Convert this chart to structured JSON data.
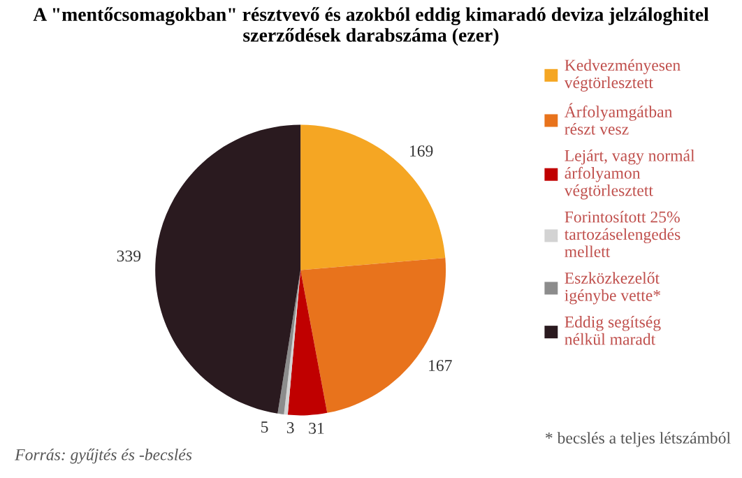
{
  "chart_data": {
    "type": "pie",
    "title": "A \"mentőcsomagokban\" résztvevő és azokból eddig kimaradó deviza jelzáloghitel szerződések darabszáma (ezer)",
    "categories": [
      "Kedvezményesen végtörlesztett",
      "Árfolyamgátban részt vesz",
      "Lejárt, vagy normál árfolyamon végtörlesztett",
      "Forintosított 25% tartozáselengedés mellett",
      "Eszközkezelőt igénybe vette*",
      "Eddig segítség nélkül maradt"
    ],
    "values": [
      169,
      167,
      31,
      3,
      5,
      339
    ],
    "colors": [
      "#f5a623",
      "#e8731c",
      "#c00000",
      "#d3d3d3",
      "#8c8c8c",
      "#2a1a1f"
    ],
    "data_labels": true,
    "legend": "right",
    "annotations": [
      "Forrás: gyűjtés és -becslés",
      "* becslés a teljes létszámból"
    ]
  }
}
